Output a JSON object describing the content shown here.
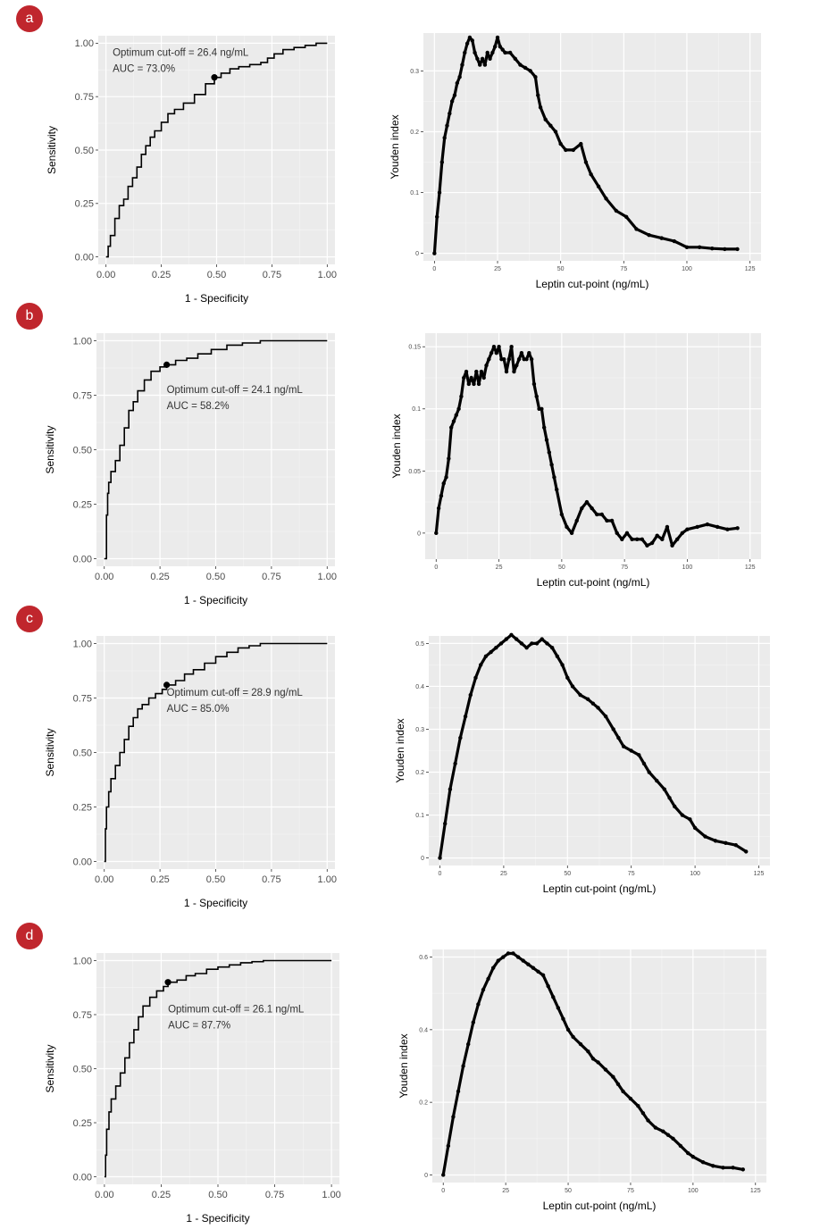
{
  "chart_data": [
    {
      "panel": "a",
      "roc": {
        "type": "line",
        "xlabel": "1 - Specificity",
        "ylabel": "Sensitivity",
        "xlim": [
          0,
          1
        ],
        "ylim": [
          0,
          1
        ],
        "xticks": [
          "0.00",
          "0.25",
          "0.50",
          "0.75",
          "1.00"
        ],
        "yticks": [
          "0.00",
          "0.25",
          "0.50",
          "0.75",
          "1.00"
        ],
        "annotation": [
          "Optimum cut-off = 26.4 ng/mL",
          "AUC = 73.0%"
        ],
        "optimum_point": [
          0.49,
          0.84
        ],
        "x": [
          0,
          0.01,
          0.02,
          0.04,
          0.06,
          0.08,
          0.1,
          0.12,
          0.14,
          0.16,
          0.18,
          0.2,
          0.22,
          0.25,
          0.28,
          0.31,
          0.35,
          0.4,
          0.45,
          0.49,
          0.52,
          0.56,
          0.6,
          0.65,
          0.7,
          0.73,
          0.76,
          0.8,
          0.85,
          0.9,
          0.95,
          1.0
        ],
        "y": [
          0,
          0.05,
          0.1,
          0.18,
          0.24,
          0.27,
          0.33,
          0.37,
          0.42,
          0.48,
          0.52,
          0.56,
          0.59,
          0.63,
          0.67,
          0.69,
          0.72,
          0.76,
          0.81,
          0.84,
          0.86,
          0.88,
          0.89,
          0.9,
          0.91,
          0.93,
          0.95,
          0.97,
          0.98,
          0.99,
          1.0,
          1.0
        ]
      },
      "youden": {
        "type": "scatter",
        "xlabel": "Leptin cut-point (ng/mL)",
        "ylabel": "Youden index",
        "xlim": [
          0,
          125
        ],
        "ylim": [
          0,
          0.35
        ],
        "xticks": [
          0,
          25,
          50,
          75,
          100,
          125
        ],
        "yticks": [
          0.0,
          0.1,
          0.2,
          0.3
        ],
        "x": [
          0,
          1,
          2,
          3,
          4,
          5,
          6,
          7,
          8,
          9,
          10,
          11,
          12,
          13,
          14,
          15,
          16,
          17,
          18,
          19,
          20,
          21,
          22,
          23,
          24,
          25,
          26,
          27,
          28,
          30,
          32,
          34,
          36,
          38,
          40,
          41,
          42,
          44,
          46,
          48,
          50,
          52,
          55,
          58,
          60,
          62,
          65,
          68,
          72,
          76,
          80,
          85,
          90,
          95,
          100,
          105,
          110,
          115,
          120
        ],
        "y": [
          0.0,
          0.06,
          0.1,
          0.15,
          0.19,
          0.21,
          0.23,
          0.25,
          0.26,
          0.28,
          0.29,
          0.31,
          0.33,
          0.345,
          0.355,
          0.35,
          0.33,
          0.32,
          0.31,
          0.32,
          0.31,
          0.33,
          0.32,
          0.33,
          0.34,
          0.355,
          0.34,
          0.335,
          0.33,
          0.33,
          0.32,
          0.31,
          0.305,
          0.3,
          0.29,
          0.26,
          0.24,
          0.22,
          0.21,
          0.2,
          0.18,
          0.17,
          0.17,
          0.18,
          0.15,
          0.13,
          0.11,
          0.09,
          0.07,
          0.06,
          0.04,
          0.03,
          0.025,
          0.02,
          0.01,
          0.01,
          0.008,
          0.007,
          0.007
        ]
      }
    },
    {
      "panel": "b",
      "roc": {
        "type": "line",
        "xlabel": "1 - Specificity",
        "ylabel": "Sensitivity",
        "xlim": [
          0,
          1
        ],
        "ylim": [
          0,
          1
        ],
        "xticks": [
          "0.00",
          "0.25",
          "0.50",
          "0.75",
          "1.00"
        ],
        "yticks": [
          "0.00",
          "0.25",
          "0.50",
          "0.75",
          "1.00"
        ],
        "annotation": [
          "Optimum cut-off = 24.1 ng/mL",
          "AUC = 58.2%"
        ],
        "optimum_point": [
          0.28,
          0.89
        ],
        "x": [
          0,
          0.01,
          0.015,
          0.02,
          0.03,
          0.05,
          0.07,
          0.09,
          0.11,
          0.13,
          0.15,
          0.18,
          0.21,
          0.25,
          0.28,
          0.32,
          0.37,
          0.42,
          0.48,
          0.55,
          0.62,
          0.7,
          0.8,
          0.9,
          1.0
        ],
        "y": [
          0,
          0.2,
          0.3,
          0.35,
          0.4,
          0.45,
          0.52,
          0.6,
          0.68,
          0.72,
          0.77,
          0.82,
          0.86,
          0.88,
          0.89,
          0.91,
          0.92,
          0.94,
          0.96,
          0.98,
          0.99,
          1.0,
          1.0,
          1.0,
          1.0
        ]
      },
      "youden": {
        "type": "scatter",
        "xlabel": "Leptin cut-point (ng/mL)",
        "ylabel": "Youden index",
        "xlim": [
          0,
          125
        ],
        "ylim": [
          -0.015,
          0.155
        ],
        "xticks": [
          0,
          25,
          50,
          75,
          100,
          125
        ],
        "yticks": [
          0.0,
          0.05,
          0.1,
          0.15
        ],
        "x": [
          0,
          1,
          2,
          3,
          4,
          5,
          6,
          7,
          8,
          9,
          10,
          11,
          12,
          13,
          14,
          15,
          16,
          17,
          18,
          19,
          20,
          21,
          22,
          23,
          24,
          25,
          26,
          27,
          28,
          29,
          30,
          31,
          32,
          33,
          34,
          35,
          36,
          37,
          38,
          39,
          40,
          41,
          42,
          43,
          44,
          45,
          46,
          47,
          48,
          50,
          52,
          54,
          56,
          58,
          60,
          62,
          64,
          66,
          68,
          70,
          72,
          74,
          76,
          78,
          80,
          82,
          84,
          86,
          88,
          90,
          92,
          94,
          96,
          98,
          100,
          104,
          108,
          112,
          116,
          120
        ],
        "y": [
          0.0,
          0.02,
          0.03,
          0.04,
          0.045,
          0.06,
          0.085,
          0.09,
          0.095,
          0.1,
          0.11,
          0.125,
          0.13,
          0.12,
          0.125,
          0.12,
          0.13,
          0.12,
          0.13,
          0.125,
          0.135,
          0.14,
          0.145,
          0.15,
          0.145,
          0.15,
          0.14,
          0.14,
          0.13,
          0.14,
          0.15,
          0.13,
          0.135,
          0.14,
          0.145,
          0.14,
          0.14,
          0.145,
          0.14,
          0.12,
          0.11,
          0.1,
          0.1,
          0.085,
          0.075,
          0.065,
          0.055,
          0.045,
          0.035,
          0.015,
          0.005,
          0.0,
          0.01,
          0.02,
          0.025,
          0.02,
          0.015,
          0.015,
          0.01,
          0.01,
          0.0,
          -0.005,
          0.0,
          -0.005,
          -0.005,
          -0.005,
          -0.01,
          -0.008,
          -0.002,
          -0.005,
          0.005,
          -0.01,
          -0.005,
          0.0,
          0.003,
          0.005,
          0.007,
          0.005,
          0.003,
          0.004
        ]
      }
    },
    {
      "panel": "c",
      "roc": {
        "type": "line",
        "xlabel": "1 - Specificity",
        "ylabel": "Sensitivity",
        "xlim": [
          0,
          1
        ],
        "ylim": [
          0,
          1
        ],
        "xticks": [
          "0.00",
          "0.25",
          "0.50",
          "0.75",
          "1.00"
        ],
        "yticks": [
          "0.00",
          "0.25",
          "0.50",
          "0.75",
          "1.00"
        ],
        "annotation": [
          "Optimum cut-off = 28.9 ng/mL",
          "AUC = 85.0%"
        ],
        "optimum_point": [
          0.28,
          0.81
        ],
        "x": [
          0,
          0.005,
          0.01,
          0.02,
          0.03,
          0.05,
          0.07,
          0.09,
          0.11,
          0.13,
          0.15,
          0.17,
          0.2,
          0.23,
          0.26,
          0.28,
          0.32,
          0.36,
          0.4,
          0.45,
          0.5,
          0.55,
          0.6,
          0.65,
          0.7,
          0.8,
          0.9,
          1.0
        ],
        "y": [
          0,
          0.15,
          0.25,
          0.32,
          0.38,
          0.44,
          0.5,
          0.56,
          0.62,
          0.66,
          0.7,
          0.72,
          0.75,
          0.77,
          0.79,
          0.81,
          0.83,
          0.86,
          0.88,
          0.91,
          0.94,
          0.96,
          0.98,
          0.99,
          1.0,
          1.0,
          1.0,
          1.0
        ]
      },
      "youden": {
        "type": "scatter",
        "xlabel": "Leptin cut-point (ng/mL)",
        "ylabel": "Youden index",
        "xlim": [
          0,
          125
        ],
        "ylim": [
          0,
          0.5
        ],
        "xticks": [
          0,
          25,
          50,
          75,
          100,
          125
        ],
        "yticks": [
          0.0,
          0.1,
          0.2,
          0.3,
          0.4,
          0.5
        ],
        "x": [
          0,
          2,
          4,
          6,
          8,
          10,
          12,
          14,
          16,
          18,
          20,
          22,
          24,
          26,
          28,
          30,
          32,
          34,
          36,
          38,
          40,
          42,
          44,
          46,
          48,
          50,
          52,
          55,
          58,
          60,
          62,
          65,
          68,
          70,
          72,
          75,
          78,
          80,
          82,
          85,
          88,
          90,
          92,
          95,
          98,
          100,
          104,
          108,
          112,
          116,
          120
        ],
        "y": [
          0.0,
          0.08,
          0.16,
          0.22,
          0.28,
          0.33,
          0.38,
          0.42,
          0.45,
          0.47,
          0.48,
          0.49,
          0.5,
          0.51,
          0.52,
          0.51,
          0.5,
          0.49,
          0.5,
          0.5,
          0.51,
          0.5,
          0.49,
          0.47,
          0.45,
          0.42,
          0.4,
          0.38,
          0.37,
          0.36,
          0.35,
          0.33,
          0.3,
          0.28,
          0.26,
          0.25,
          0.24,
          0.22,
          0.2,
          0.18,
          0.16,
          0.14,
          0.12,
          0.1,
          0.09,
          0.07,
          0.05,
          0.04,
          0.035,
          0.03,
          0.015
        ]
      }
    },
    {
      "panel": "d",
      "roc": {
        "type": "line",
        "xlabel": "1 - Specificity",
        "ylabel": "Sensitivity",
        "xlim": [
          0,
          1
        ],
        "ylim": [
          0,
          1
        ],
        "xticks": [
          "0.00",
          "0.25",
          "0.50",
          "0.75",
          "1.00"
        ],
        "yticks": [
          "0.00",
          "0.25",
          "0.50",
          "0.75",
          "1.00"
        ],
        "annotation": [
          "Optimum cut-off = 26.1 ng/mL",
          "AUC = 87.7%"
        ],
        "optimum_point": [
          0.28,
          0.9
        ],
        "x": [
          0,
          0.005,
          0.01,
          0.02,
          0.03,
          0.05,
          0.07,
          0.09,
          0.11,
          0.13,
          0.15,
          0.17,
          0.2,
          0.23,
          0.26,
          0.28,
          0.32,
          0.36,
          0.4,
          0.45,
          0.5,
          0.55,
          0.6,
          0.65,
          0.7,
          0.8,
          0.9,
          1.0
        ],
        "y": [
          0,
          0.1,
          0.22,
          0.3,
          0.36,
          0.42,
          0.48,
          0.55,
          0.62,
          0.68,
          0.74,
          0.79,
          0.83,
          0.86,
          0.88,
          0.9,
          0.91,
          0.93,
          0.94,
          0.96,
          0.97,
          0.98,
          0.99,
          0.995,
          1.0,
          1.0,
          1.0,
          1.0
        ]
      },
      "youden": {
        "type": "scatter",
        "xlabel": "Leptin cut-point (ng/mL)",
        "ylabel": "Youden index",
        "xlim": [
          0,
          125
        ],
        "ylim": [
          0,
          0.6
        ],
        "xticks": [
          0,
          25,
          50,
          75,
          100,
          125
        ],
        "yticks": [
          0.0,
          0.2,
          0.4,
          0.6
        ],
        "x": [
          0,
          2,
          4,
          6,
          8,
          10,
          12,
          14,
          16,
          18,
          20,
          22,
          24,
          26,
          28,
          30,
          32,
          34,
          36,
          38,
          40,
          42,
          44,
          46,
          48,
          50,
          52,
          55,
          58,
          60,
          62,
          65,
          68,
          70,
          72,
          75,
          78,
          80,
          82,
          85,
          88,
          90,
          92,
          95,
          98,
          100,
          104,
          108,
          112,
          116,
          120
        ],
        "y": [
          0.0,
          0.08,
          0.16,
          0.23,
          0.3,
          0.36,
          0.42,
          0.47,
          0.51,
          0.54,
          0.57,
          0.59,
          0.6,
          0.61,
          0.61,
          0.6,
          0.59,
          0.58,
          0.57,
          0.56,
          0.55,
          0.52,
          0.49,
          0.46,
          0.43,
          0.4,
          0.38,
          0.36,
          0.34,
          0.32,
          0.31,
          0.29,
          0.27,
          0.25,
          0.23,
          0.21,
          0.19,
          0.17,
          0.15,
          0.13,
          0.12,
          0.11,
          0.1,
          0.08,
          0.06,
          0.05,
          0.035,
          0.025,
          0.02,
          0.02,
          0.015
        ]
      }
    }
  ]
}
